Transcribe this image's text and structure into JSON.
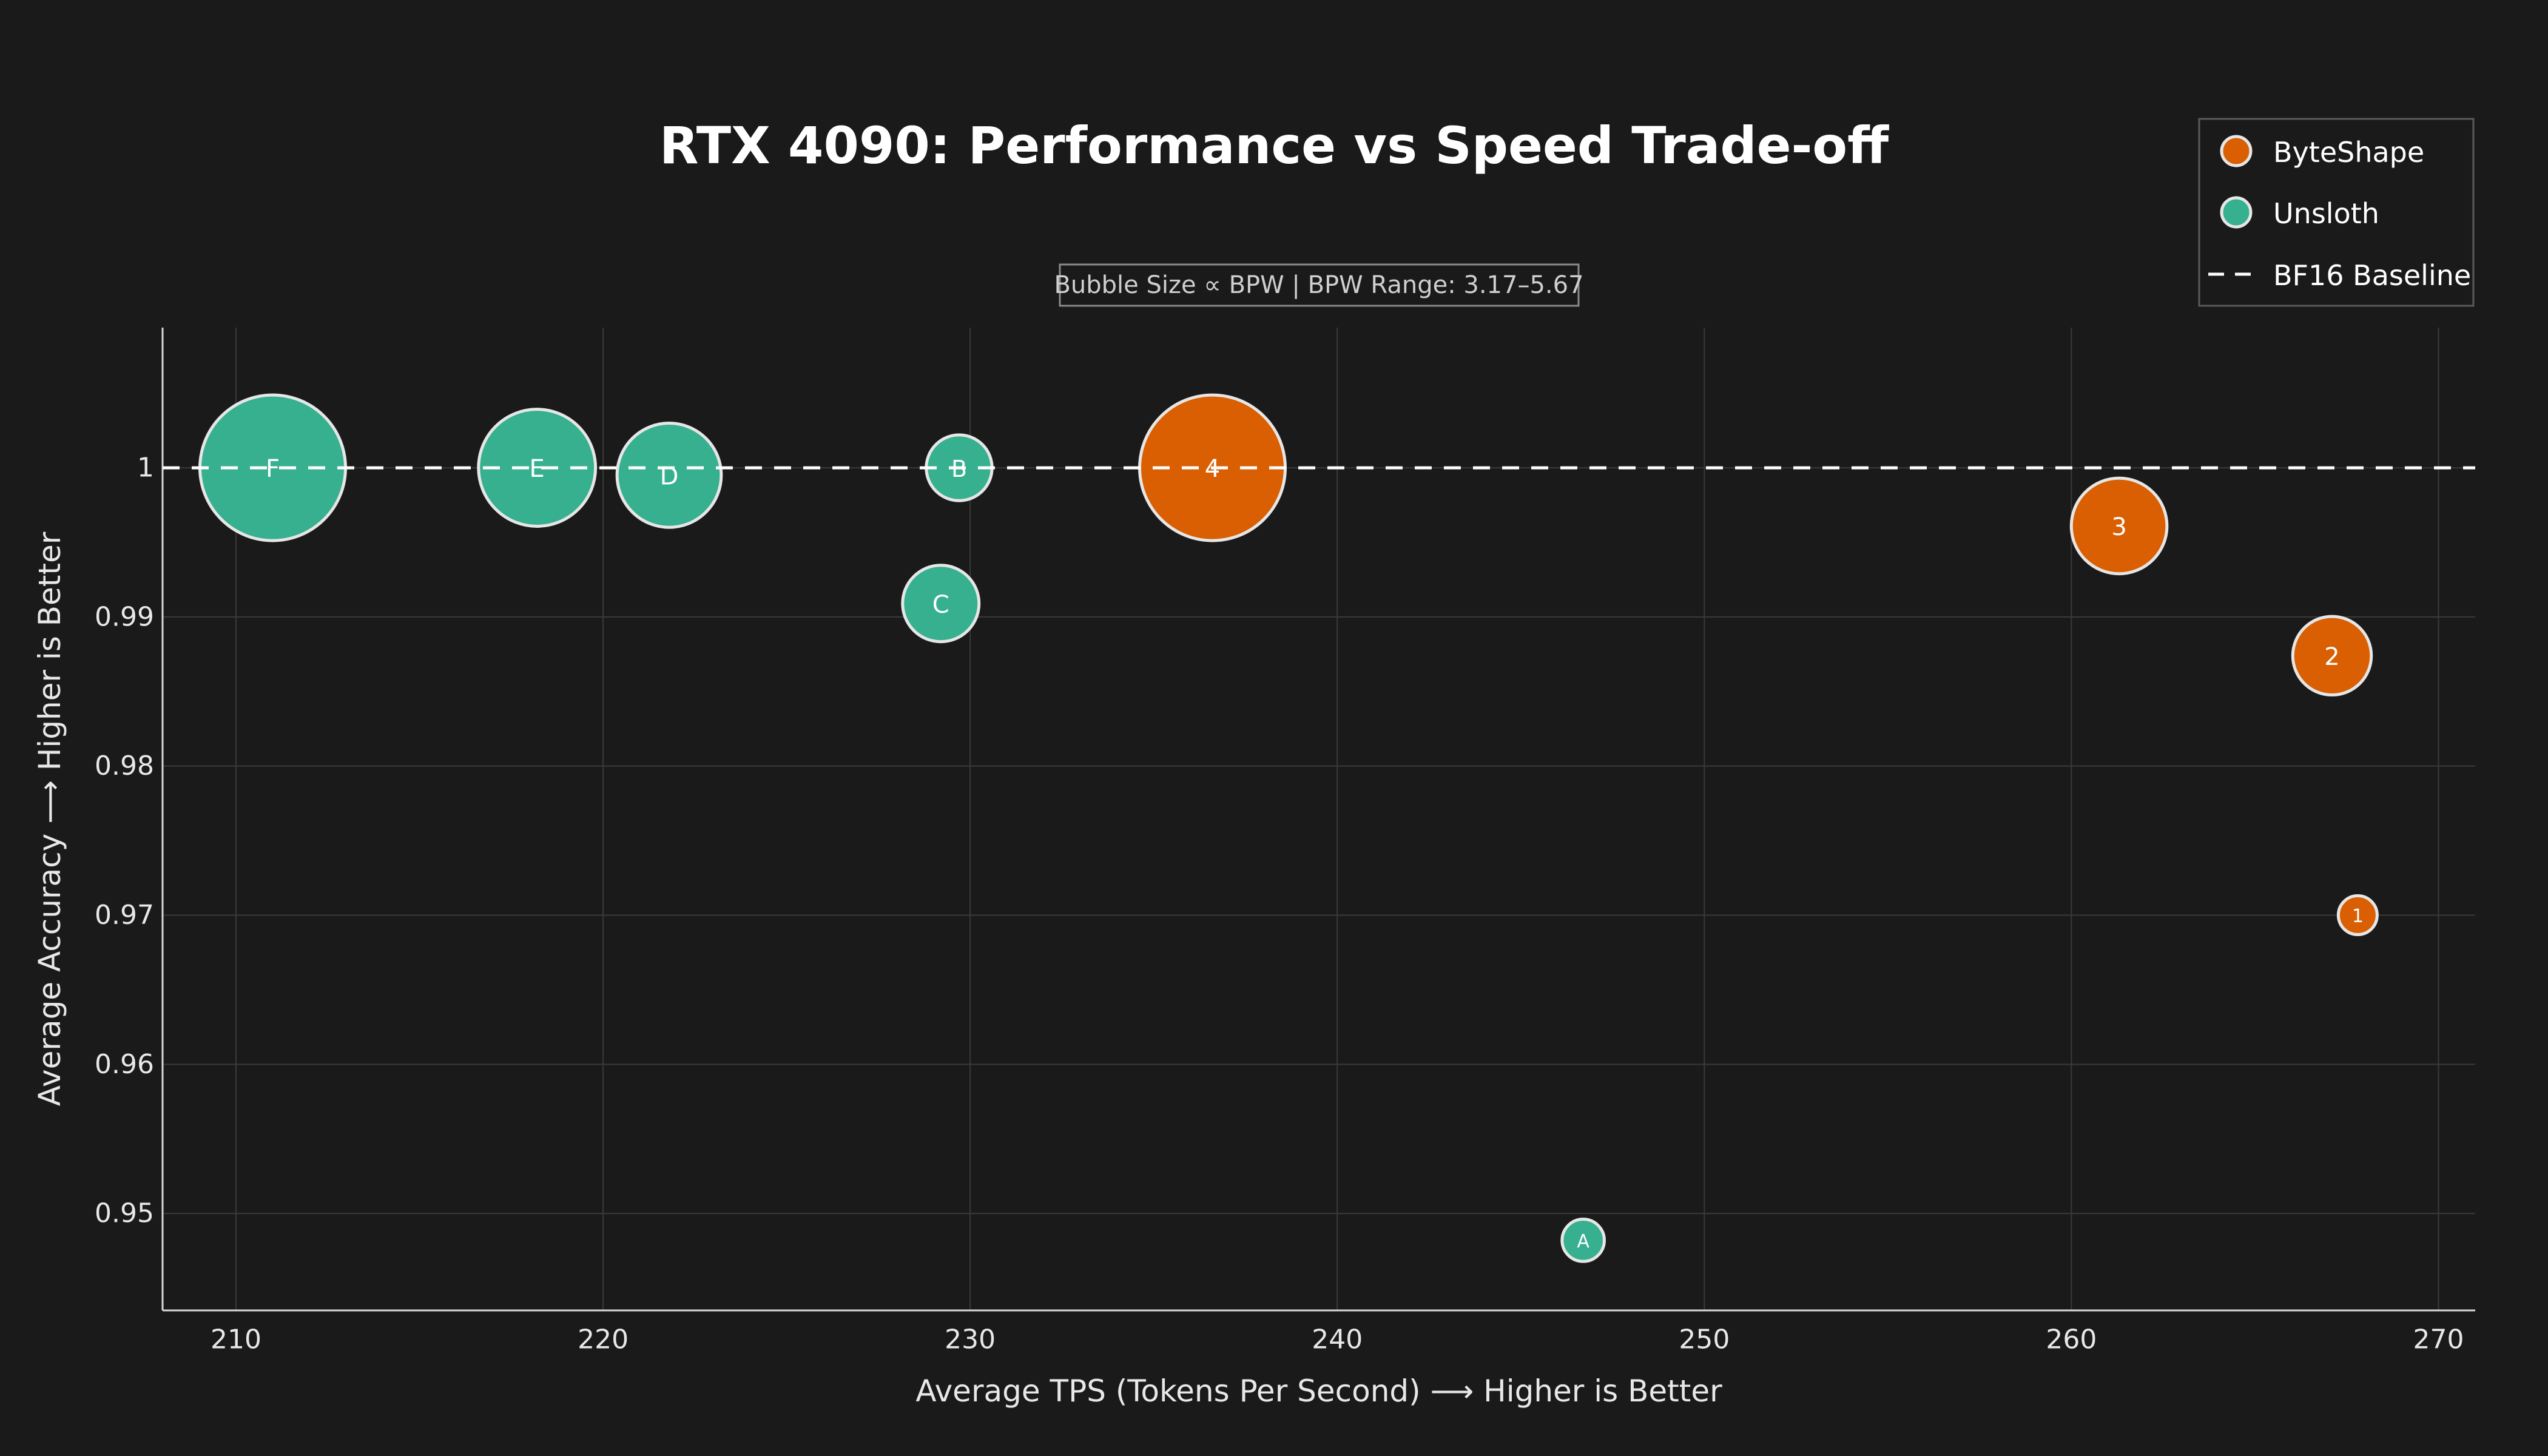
{
  "chart_data": {
    "type": "scatter",
    "title": "RTX 4090: Performance vs Speed Trade-off",
    "subtitle": "Bubble Size ∝ BPW | BPW Range: 3.17–5.67",
    "xlabel": "Average TPS (Tokens Per Second) ⟶ Higher is Better",
    "ylabel": "Average Accuracy ⟶ Higher is Better",
    "xlim": [
      208,
      271
    ],
    "ylim": [
      0.9435,
      1.0094
    ],
    "xticks": [
      210,
      220,
      230,
      240,
      250,
      260,
      270
    ],
    "yticks": [
      0.95,
      0.96,
      0.97,
      0.98,
      0.99,
      1
    ],
    "ytick_labels": [
      "0.95",
      "0.96",
      "0.97",
      "0.98",
      "0.99",
      "1"
    ],
    "grid": true,
    "legend_position": "top-right",
    "baseline": {
      "name": "BF16 Baseline",
      "y": 1.0
    },
    "series": [
      {
        "name": "ByteShape",
        "color": "#d95f02",
        "points": [
          {
            "label": "1",
            "x": 267.8,
            "y": 0.97,
            "bpw": 3.17
          },
          {
            "label": "2",
            "x": 267.1,
            "y": 0.9874,
            "bpw": 4.1
          },
          {
            "label": "3",
            "x": 261.3,
            "y": 0.9961,
            "bpw": 4.5
          },
          {
            "label": "4",
            "x": 236.6,
            "y": 1.0,
            "bpw": 5.67
          }
        ]
      },
      {
        "name": "Unsloth",
        "color": "#36b08f",
        "points": [
          {
            "label": "A",
            "x": 246.7,
            "y": 0.9482,
            "bpw": 3.25
          },
          {
            "label": "B",
            "x": 229.7,
            "y": 1.0,
            "bpw": 3.8
          },
          {
            "label": "C",
            "x": 229.2,
            "y": 0.9909,
            "bpw": 4.05
          },
          {
            "label": "D",
            "x": 221.8,
            "y": 0.9995,
            "bpw": 4.7
          },
          {
            "label": "E",
            "x": 218.2,
            "y": 1.0,
            "bpw": 5.0
          },
          {
            "label": "F",
            "x": 211.0,
            "y": 1.0,
            "bpw": 5.67
          }
        ]
      }
    ]
  }
}
